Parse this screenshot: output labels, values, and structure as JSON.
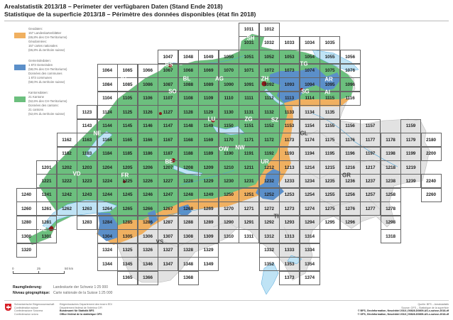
{
  "header": {
    "title_de": "Arealstatistik 2013/18 – Perimeter der verfügbaren Daten (Stand Ende 2018)",
    "title_fr": "Statistique de la superficie 2013/18 – Périmètre des données disponibles (état fin 2018)"
  },
  "legend": {
    "items": [
      {
        "color": "#f0b060",
        "lines": [
          "Geodaten:",
          "157 Landeskartenblätter",
          "(65,8% des CH-Territoriums)",
          "Géodonnées:",
          "157 cartes nationales",
          "(65,8% du territoire suisse)"
        ]
      },
      {
        "color": "#5b8fc9",
        "lines": [
          "Gemeindedaten:",
          "1 873 Gemeinden",
          "(58,0% des CH-Territoriums)",
          "Données des communes",
          "1 873 communes",
          "(58,0% du territoire suisse)"
        ]
      },
      {
        "color": "#6cbf7e",
        "lines": [
          "Kantonsdaten:",
          "21 Kantone",
          "(52,6% des CH-Territoriums)",
          "Données des cantons:",
          "21 cantons",
          "(52,6% du territoire suisse)"
        ]
      }
    ]
  },
  "scale": {
    "ticks": [
      "0",
      "25",
      "50 km"
    ]
  },
  "meta": {
    "label_de": "Raumgliederung:",
    "value_de": "Landeskarte der Schweiz 1:25 000",
    "label_fr": "Niveau géographique:",
    "value_fr": "Carte nationale de la Suisse 1:25 000"
  },
  "map": {
    "cantons": [
      "BS",
      "JU",
      "BL",
      "SO",
      "AG",
      "ZH",
      "SH",
      "TG",
      "AR",
      "AI",
      "SG",
      "GL",
      "SZ",
      "ZG",
      "LU",
      "NE",
      "BE",
      "OW",
      "NW",
      "UR",
      "FR",
      "VD",
      "GE",
      "VS",
      "TI",
      "GR"
    ],
    "sheet_rows": [
      [
        "",
        "",
        "",
        "",
        "",
        "",
        "",
        "",
        "",
        "",
        "",
        "1011",
        "1012",
        "",
        "",
        "",
        "",
        "",
        "",
        "",
        ""
      ],
      [
        "",
        "",
        "",
        "",
        "",
        "",
        "",
        "",
        "",
        "",
        "",
        "1031",
        "1032",
        "1033",
        "1034",
        "1035",
        "",
        "",
        "",
        "",
        ""
      ],
      [
        "",
        "",
        "",
        "",
        "",
        "",
        "",
        "1047",
        "1048",
        "1049",
        "1050",
        "1051",
        "1052",
        "1053",
        "1054",
        "1055",
        "1056",
        "",
        "",
        "",
        ""
      ],
      [
        "",
        "",
        "",
        "",
        "1064",
        "1065",
        "1066",
        "1067",
        "1068",
        "1069",
        "1070",
        "1071",
        "1072",
        "1073",
        "1074",
        "1075",
        "1076",
        "",
        "",
        "",
        ""
      ],
      [
        "",
        "",
        "",
        "",
        "1084",
        "1085",
        "1086",
        "1087",
        "1088",
        "1089",
        "1090",
        "1091",
        "1092",
        "1093",
        "1094",
        "1095",
        "1096",
        "",
        "",
        "",
        ""
      ],
      [
        "",
        "",
        "",
        "",
        "1104",
        "1105",
        "1106",
        "1107",
        "1108",
        "1109",
        "1110",
        "1111",
        "1112",
        "1113",
        "1114",
        "1115",
        "1116",
        "",
        "",
        "",
        ""
      ],
      [
        "",
        "",
        "",
        "1123",
        "1124",
        "1125",
        "1126",
        "1127",
        "1128",
        "1129",
        "1130",
        "1131",
        "1132",
        "1133",
        "1134",
        "1135",
        "",
        "",
        "",
        "",
        ""
      ],
      [
        "",
        "",
        "",
        "1143",
        "1144",
        "1145",
        "1146",
        "1147",
        "1148",
        "1149",
        "1150",
        "1151",
        "1152",
        "1153",
        "1154",
        "1155",
        "1156",
        "1157",
        "",
        "1159",
        ""
      ],
      [
        "",
        "",
        "1162",
        "1163",
        "1164",
        "1165",
        "1166",
        "1167",
        "1168",
        "1169",
        "1170",
        "1171",
        "1172",
        "1173",
        "1174",
        "1175",
        "1176",
        "1177",
        "1178",
        "1179",
        "2180"
      ],
      [
        "",
        "",
        "1182",
        "1183",
        "1184",
        "1185",
        "1186",
        "1187",
        "1188",
        "1189",
        "1190",
        "1191",
        "1192",
        "1193",
        "1194",
        "1195",
        "1196",
        "1197",
        "1198",
        "1199",
        "2200"
      ],
      [
        "",
        "1201",
        "1202",
        "1203",
        "1204",
        "1205",
        "1206",
        "1207",
        "1208",
        "1209",
        "1210",
        "1211",
        "1212",
        "1213",
        "1214",
        "1215",
        "1216",
        "1217",
        "1218",
        "1219",
        ""
      ],
      [
        "",
        "1221",
        "1222",
        "1223",
        "1224",
        "1225",
        "1226",
        "1227",
        "1228",
        "1229",
        "1230",
        "1231",
        "1232",
        "1233",
        "1234",
        "1235",
        "1236",
        "1237",
        "1238",
        "1239",
        "2240"
      ],
      [
        "1240",
        "1241",
        "1242",
        "1243",
        "1244",
        "1245",
        "1246",
        "1247",
        "1248",
        "1249",
        "1250",
        "1251",
        "1252",
        "1253",
        "1254",
        "1255",
        "1256",
        "1257",
        "1258",
        "",
        "2260"
      ],
      [
        "1260",
        "1261",
        "1262",
        "1263",
        "1264",
        "1265",
        "1266",
        "1267",
        "1268",
        "1269",
        "1270",
        "1271",
        "1272",
        "1273",
        "1274",
        "1275",
        "1276",
        "1277",
        "1278",
        "",
        ""
      ],
      [
        "1280",
        "1281",
        "",
        "1283",
        "1284",
        "1285",
        "1286",
        "1287",
        "1288",
        "1289",
        "1290",
        "1291",
        "1292",
        "1293",
        "1294",
        "1295",
        "1296",
        "",
        "1298",
        "",
        ""
      ],
      [
        "1300",
        "1301",
        "",
        "",
        "1304",
        "1305",
        "1306",
        "1307",
        "1308",
        "1309",
        "1310",
        "1311",
        "1312",
        "1313",
        "1314",
        "",
        "",
        "",
        "1318",
        "",
        ""
      ],
      [
        "1320",
        "",
        "",
        "",
        "1324",
        "1325",
        "1326",
        "1327",
        "1328",
        "1329",
        "",
        "",
        "1332",
        "1333",
        "1334",
        "",
        "",
        "",
        "",
        "",
        ""
      ],
      [
        "",
        "",
        "",
        "",
        "1344",
        "1345",
        "1346",
        "1347",
        "1348",
        "1349",
        "",
        "",
        "1352",
        "1353",
        "1354",
        "",
        "",
        "",
        "",
        "",
        ""
      ],
      [
        "",
        "",
        "",
        "",
        "",
        "1365",
        "1366",
        "",
        "1368",
        "",
        "",
        "",
        "",
        "1373",
        "1374",
        "",
        "",
        "",
        "",
        "",
        ""
      ]
    ]
  },
  "footer": {
    "col1": [
      "Schweizerische Eidgenossenschaft",
      "Confédération suisse",
      "Confederazione Svizzera",
      "Confederaziun svizra"
    ],
    "col2": [
      "Eidgenössisches Departement des Innern EDI",
      "Département fédéral de l'intérieur DFI",
      "Bundesamt für Statistik BFS",
      "Office fédéral de la statistique OFS"
    ],
    "col3": [
      "Quelle: BFS – Arealstatistik",
      "Source: OFS – Statistique de la superficie",
      "© BFS, GeoInformation, Neuchâtel 2018 | 00828-D0809-AS-c-suisse-2018-df",
      "© OFS, GéoInformation, Neuchâtel 2018 | 00828-D0809-AS-c-suisse-2018-df"
    ]
  }
}
